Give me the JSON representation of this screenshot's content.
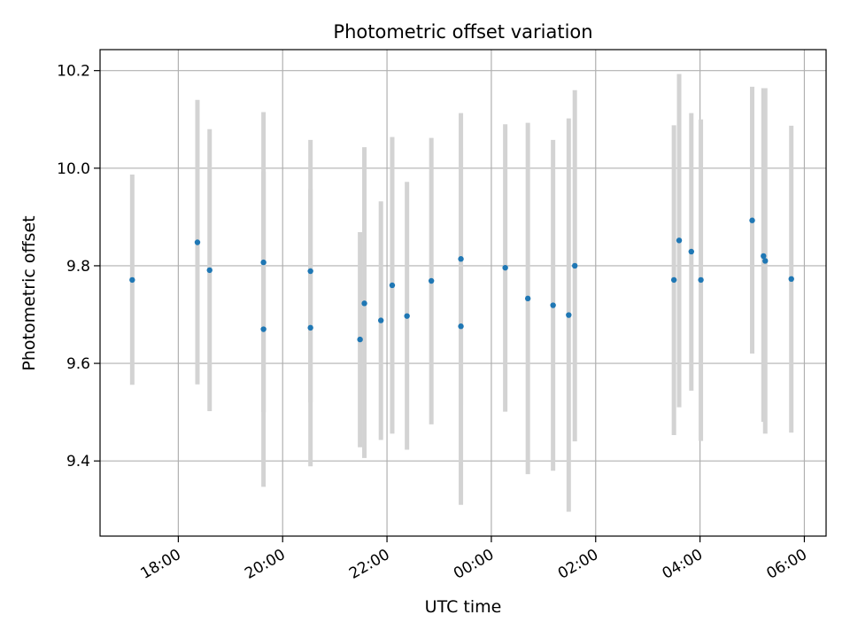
{
  "chart_data": {
    "type": "scatter",
    "title": "Photometric offset variation",
    "xlabel": "UTC time",
    "ylabel": "Photometric offset",
    "x_axis": "time",
    "x_range": [
      "2023-01-01T16:30",
      "2023-01-02T06:25"
    ],
    "xticks": [
      {
        "value": "2023-01-01T18:00",
        "label": "18:00"
      },
      {
        "value": "2023-01-01T20:00",
        "label": "20:00"
      },
      {
        "value": "2023-01-01T22:00",
        "label": "22:00"
      },
      {
        "value": "2023-01-02T00:00",
        "label": "00:00"
      },
      {
        "value": "2023-01-02T02:00",
        "label": "02:00"
      },
      {
        "value": "2023-01-02T04:00",
        "label": "04:00"
      },
      {
        "value": "2023-01-02T06:00",
        "label": "06:00"
      }
    ],
    "ylim": [
      9.246,
      10.243
    ],
    "yticks": [
      {
        "value": 9.4,
        "label": "9.4"
      },
      {
        "value": 9.6,
        "label": "9.6"
      },
      {
        "value": 9.8,
        "label": "9.8"
      },
      {
        "value": 10.0,
        "label": "10.0"
      },
      {
        "value": 10.2,
        "label": "10.2"
      }
    ],
    "grid": true,
    "colors": {
      "point": "#1f77b4",
      "errorbar": "#d3d3d3",
      "grid": "#b0b0b0"
    },
    "series": [
      {
        "points": [
          {
            "t": "2023-01-01T17:07",
            "y": 9.771,
            "lo": 9.556,
            "hi": 9.987
          },
          {
            "t": "2023-01-01T18:22",
            "y": 9.848,
            "lo": 9.557,
            "hi": 10.14
          },
          {
            "t": "2023-01-01T18:36",
            "y": 9.791,
            "lo": 9.502,
            "hi": 10.08
          },
          {
            "t": "2023-01-01T19:38",
            "y": 9.807,
            "lo": 9.5,
            "hi": 10.115
          },
          {
            "t": "2023-01-01T19:38",
            "y": 9.67,
            "lo": 9.347,
            "hi": 9.993
          },
          {
            "t": "2023-01-01T20:32",
            "y": 9.789,
            "lo": 9.52,
            "hi": 10.058
          },
          {
            "t": "2023-01-01T20:32",
            "y": 9.673,
            "lo": 9.389,
            "hi": 9.957
          },
          {
            "t": "2023-01-01T21:29",
            "y": 9.649,
            "lo": 9.428,
            "hi": 9.869
          },
          {
            "t": "2023-01-01T21:34",
            "y": 9.723,
            "lo": 9.406,
            "hi": 10.043
          },
          {
            "t": "2023-01-01T21:53",
            "y": 9.688,
            "lo": 9.443,
            "hi": 9.932
          },
          {
            "t": "2023-01-01T22:06",
            "y": 9.76,
            "lo": 9.456,
            "hi": 10.064
          },
          {
            "t": "2023-01-01T22:23",
            "y": 9.697,
            "lo": 9.423,
            "hi": 9.972
          },
          {
            "t": "2023-01-01T22:51",
            "y": 9.769,
            "lo": 9.475,
            "hi": 10.062
          },
          {
            "t": "2023-01-01T23:25",
            "y": 9.814,
            "lo": 9.515,
            "hi": 10.113
          },
          {
            "t": "2023-01-01T23:25",
            "y": 9.676,
            "lo": 9.31,
            "hi": 10.041
          },
          {
            "t": "2023-01-02T00:16",
            "y": 9.796,
            "lo": 9.501,
            "hi": 10.09
          },
          {
            "t": "2023-01-02T00:42",
            "y": 9.733,
            "lo": 9.373,
            "hi": 10.093
          },
          {
            "t": "2023-01-02T01:11",
            "y": 9.719,
            "lo": 9.38,
            "hi": 10.058
          },
          {
            "t": "2023-01-02T01:29",
            "y": 9.699,
            "lo": 9.296,
            "hi": 10.102
          },
          {
            "t": "2023-01-02T01:36",
            "y": 9.8,
            "lo": 9.44,
            "hi": 10.16
          },
          {
            "t": "2023-01-02T03:30",
            "y": 9.771,
            "lo": 9.453,
            "hi": 10.088
          },
          {
            "t": "2023-01-02T03:36",
            "y": 9.852,
            "lo": 9.51,
            "hi": 10.193
          },
          {
            "t": "2023-01-02T03:50",
            "y": 9.829,
            "lo": 9.544,
            "hi": 10.113
          },
          {
            "t": "2023-01-02T04:01",
            "y": 9.771,
            "lo": 9.441,
            "hi": 10.1
          },
          {
            "t": "2023-01-02T05:00",
            "y": 9.893,
            "lo": 9.62,
            "hi": 10.167
          },
          {
            "t": "2023-01-02T05:13",
            "y": 9.82,
            "lo": 9.48,
            "hi": 10.164
          },
          {
            "t": "2023-01-02T05:15",
            "y": 9.81,
            "lo": 9.456,
            "hi": 10.164
          },
          {
            "t": "2023-01-02T05:45",
            "y": 9.773,
            "lo": 9.458,
            "hi": 10.087
          }
        ]
      }
    ]
  }
}
